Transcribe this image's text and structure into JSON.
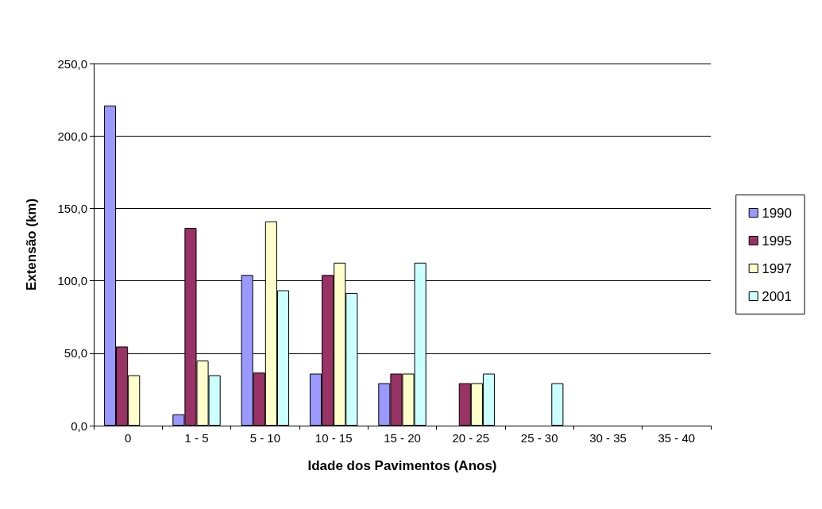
{
  "chart_data": {
    "type": "bar",
    "xlabel": "Idade dos Pavimentos (Anos)",
    "ylabel": "Extensão (km)",
    "categories": [
      "0",
      "1 - 5",
      "5 - 10",
      "10 - 15",
      "15 - 20",
      "20 - 25",
      "25 - 30",
      "30 - 35",
      "35 - 40"
    ],
    "series": [
      {
        "name": "1990",
        "color": "#9999ff",
        "values": [
          221,
          7.8,
          104,
          35.9,
          29.3,
          null,
          null,
          null,
          null
        ]
      },
      {
        "name": "1995",
        "color": "#993366",
        "values": [
          54.6,
          136.5,
          36.6,
          104,
          35.9,
          29.3,
          null,
          null,
          null
        ]
      },
      {
        "name": "1997",
        "color": "#ffffcc",
        "values": [
          34.8,
          44.9,
          141,
          112.5,
          35.9,
          29.3,
          null,
          null,
          null
        ]
      },
      {
        "name": "2001",
        "color": "#ccffff",
        "values": [
          null,
          34.8,
          93.4,
          91.6,
          112.5,
          35.9,
          29.3,
          null,
          null
        ]
      }
    ],
    "ylim": [
      0,
      250
    ],
    "yticks": [
      {
        "value": 0,
        "label": "0,0"
      },
      {
        "value": 50,
        "label": "50,0"
      },
      {
        "value": 100,
        "label": "100,0"
      },
      {
        "value": 150,
        "label": "150,0"
      },
      {
        "value": 200,
        "label": "200,0"
      },
      {
        "value": 250,
        "label": "250,0"
      }
    ],
    "grid": "y",
    "legend": "right"
  }
}
